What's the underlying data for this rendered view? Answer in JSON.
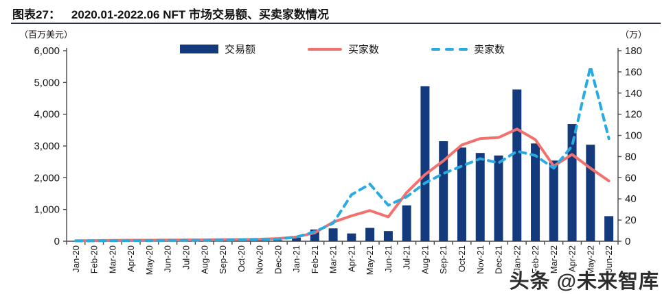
{
  "header": {
    "tag": "图表27：",
    "title": "2020.01-2022.06 NFT 市场交易额、买卖家数情况"
  },
  "axes": {
    "left_unit": "（百万美元）",
    "right_unit": "（万）"
  },
  "legend": {
    "volume_label": "交易额",
    "buyers_label": "买家数",
    "sellers_label": "卖家数"
  },
  "watermark": "头条 @未来智库",
  "colors": {
    "bar": "#123a7c",
    "buyers": "#f2716e",
    "sellers": "#29abe2",
    "axis": "#48484a",
    "text": "#111111",
    "rule": "#2b2d4f"
  },
  "chart_data": {
    "type": "bar",
    "title": "2020.01-2022.06 NFT 市场交易额、买卖家数情况",
    "categories": [
      "Jan-20",
      "Feb-20",
      "Mar-20",
      "Apr-20",
      "May-20",
      "Jun-20",
      "Jul-20",
      "Aug-20",
      "Sep-20",
      "Oct-20",
      "Nov-20",
      "Dec-20",
      "Jan-21",
      "Feb-21",
      "Mar-21",
      "Apr-21",
      "May-21",
      "Jun-21",
      "Jul-21",
      "Aug-21",
      "Sep-21",
      "Oct-21",
      "Nov-21",
      "Dec-21",
      "Jan-22",
      "Feb-22",
      "Mar-22",
      "Apr-22",
      "May-22",
      "Jun-22"
    ],
    "series": [
      {
        "name": "交易额",
        "type": "bar",
        "axis": "left",
        "unit": "百万美元",
        "values": [
          8,
          5,
          8,
          8,
          6,
          8,
          10,
          12,
          15,
          15,
          20,
          30,
          110,
          370,
          405,
          245,
          420,
          320,
          1130,
          4880,
          3150,
          2950,
          2780,
          2700,
          4780,
          3080,
          2540,
          3690,
          3040,
          790
        ]
      },
      {
        "name": "买家数",
        "type": "line",
        "axis": "right",
        "unit": "万",
        "values": [
          0.5,
          0.6,
          0.8,
          1,
          1,
          1.1,
          1.2,
          1.3,
          1.5,
          1.6,
          1.9,
          2.5,
          4,
          8,
          18,
          24,
          29,
          23,
          46,
          63,
          76,
          91,
          97,
          98,
          106,
          96,
          71,
          82,
          69,
          57
        ]
      },
      {
        "name": "卖家数",
        "type": "line-dashed",
        "axis": "right",
        "unit": "万",
        "values": [
          0.3,
          0.4,
          0.5,
          0.6,
          0.7,
          0.8,
          0.9,
          1,
          1.1,
          1.3,
          1.6,
          2,
          4,
          9,
          17,
          44,
          54,
          34,
          42,
          55,
          64,
          71,
          78,
          74,
          85,
          81,
          69,
          90,
          165,
          97
        ]
      }
    ],
    "left_axis": {
      "label": "（百万美元）",
      "range": [
        0,
        6000
      ],
      "ticks": [
        "0",
        "1,000",
        "2,000",
        "3,000",
        "4,000",
        "5,000",
        "6,000"
      ]
    },
    "right_axis": {
      "label": "（万）",
      "range": [
        0,
        180
      ],
      "ticks": [
        "0",
        "20",
        "40",
        "60",
        "80",
        "100",
        "120",
        "140",
        "160",
        "180"
      ]
    },
    "grid": false,
    "legend_position": "top"
  }
}
